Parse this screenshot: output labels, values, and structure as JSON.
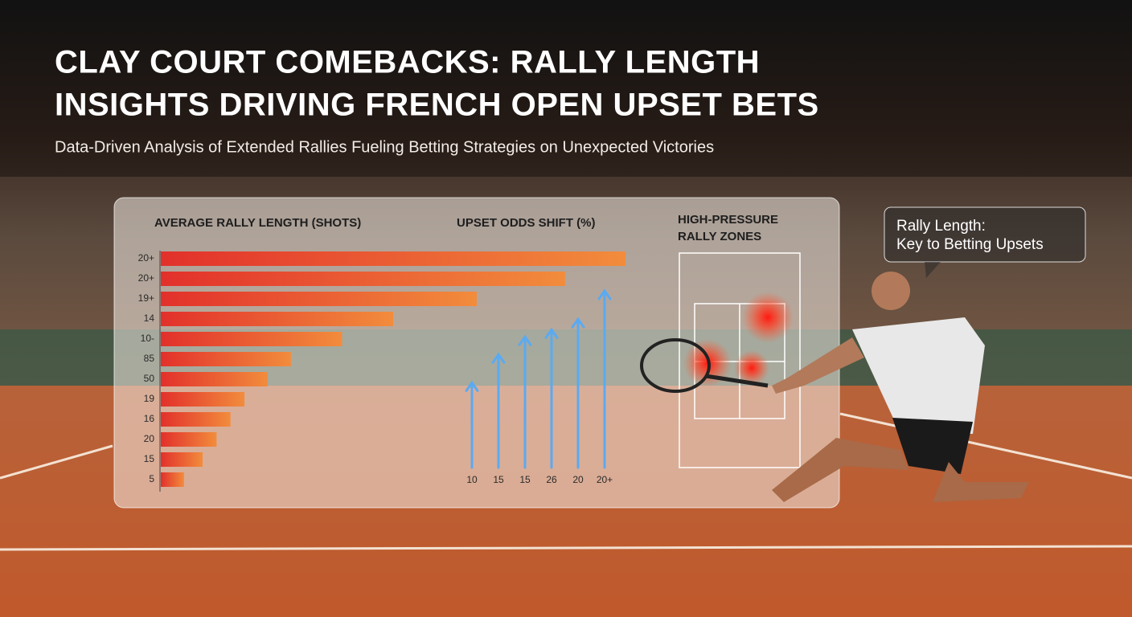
{
  "header": {
    "title": [
      "CLAY COURT COMEBACKS: RALLY LENGTH",
      "INSIGHTS DRIVING FRENCH OPEN UPSET BETS"
    ],
    "subtitle": "Data-Driven Analysis of Extended Rallies Fueling Betting Strategies on Unexpected Victories"
  },
  "chart_data": [
    {
      "type": "hbar",
      "title": "AVERAGE RALLY LENGTH (SHOTS)",
      "categories": [
        "20+",
        "20+",
        "19+",
        "14",
        "10-",
        "85",
        "50",
        "19",
        "16",
        "20",
        "15",
        "5"
      ],
      "values": [
        100,
        87,
        68,
        50,
        39,
        28,
        23,
        18,
        15,
        12,
        9,
        5
      ],
      "color_start": "#e2302b",
      "color_end": "#f28c3c"
    },
    {
      "type": "arrows",
      "title": "UPSET ODDS SHIFT (%)",
      "categories": [
        "10",
        "15",
        "15",
        "26",
        "20",
        "20+"
      ],
      "values": [
        48,
        64,
        74,
        78,
        84,
        100
      ],
      "color": "#5aaaf2"
    }
  ],
  "zones": {
    "title": [
      "HIGH-PRESSURE",
      "RALLY ZONES"
    ]
  },
  "callout": [
    "Rally Length:",
    "Key to Betting Upsets"
  ]
}
